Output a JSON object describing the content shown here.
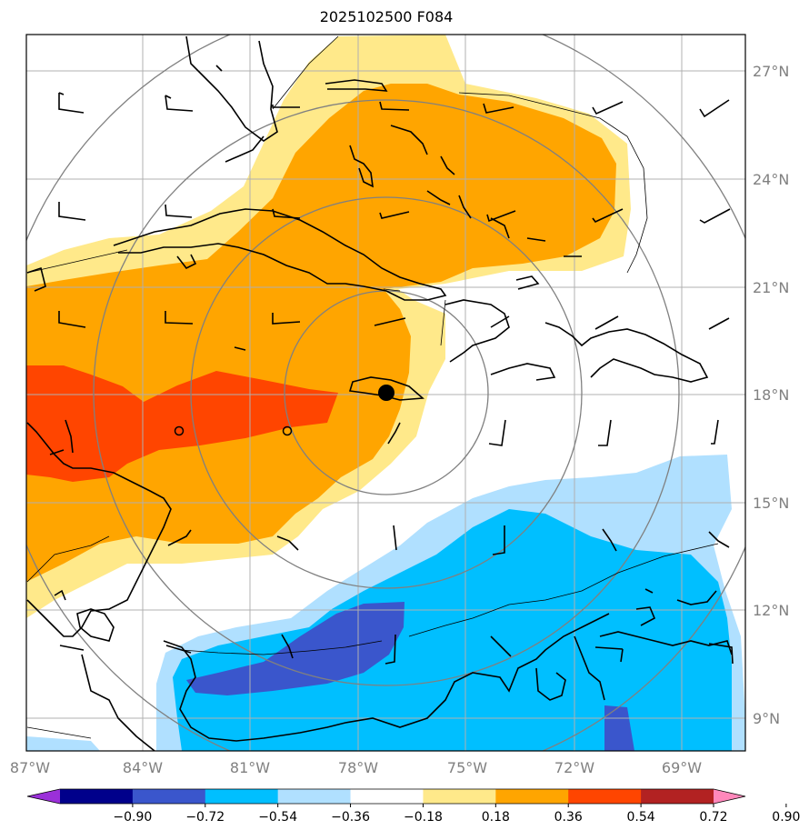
{
  "title": "2025102500 F084",
  "lon_labels": [
    "87°W",
    "84°W",
    "81°W",
    "78°W",
    "75°W",
    "72°W",
    "69°W"
  ],
  "lat_labels": [
    "27°N",
    "24°N",
    "21°N",
    "18°N",
    "15°N",
    "12°N",
    "9°N"
  ],
  "colorbar": {
    "labels": [
      "−0.90",
      "−0.72",
      "−0.54",
      "−0.36",
      "−0.18",
      "0.18",
      "0.36",
      "0.54",
      "0.72",
      "0.90"
    ],
    "colors": [
      "#9b30d9",
      "#00008b",
      "#3a56cc",
      "#00bfff",
      "#b0e0ff",
      "#ffffff",
      "#ffe98a",
      "#ffa500",
      "#ff4500",
      "#b22222",
      "#ff88bb"
    ]
  },
  "fill_colors": {
    "light_yellow": "#ffe98a",
    "orange": "#ffa500",
    "red_orange": "#ff4500",
    "light_blue": "#b0e0ff",
    "sky_blue": "#00bfff",
    "royal_blue": "#3a56cc"
  },
  "center_marker": {
    "lat": 18.1,
    "lon": "76.8°W"
  }
}
